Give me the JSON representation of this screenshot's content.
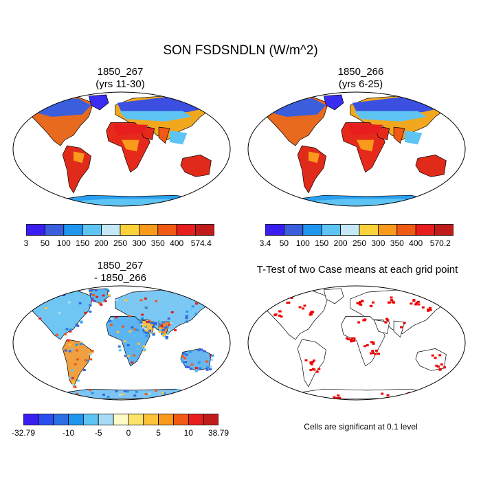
{
  "title": "SON FSDSNDLN (W/m^2)",
  "panels": [
    {
      "id": "p1",
      "line1": "1850_267",
      "line2": "(yrs 11-30)"
    },
    {
      "id": "p2",
      "line1": "1850_266",
      "line2": "(yrs 6-25)"
    },
    {
      "id": "p3",
      "line1": "1850_267",
      "line2": "- 1850_266"
    },
    {
      "id": "p4",
      "line1": "T-Test of two Case means at each grid point",
      "line2": ""
    }
  ],
  "colorbars": [
    {
      "id": "cb1",
      "labels": [
        "3",
        "50",
        "100",
        "150",
        "200",
        "250",
        "300",
        "350",
        "400",
        "574.4"
      ],
      "colors": [
        "#3a1ef0",
        "#3b5fdc",
        "#1e96f0",
        "#5ec4f4",
        "#c4e8f6",
        "#fcd23a",
        "#f99a1c",
        "#f05a14",
        "#e81e1e",
        "#c01c1c"
      ]
    },
    {
      "id": "cb2",
      "labels": [
        "3.4",
        "50",
        "100",
        "150",
        "200",
        "250",
        "300",
        "350",
        "400",
        "570.2"
      ],
      "colors": [
        "#3a1ef0",
        "#3b5fdc",
        "#1e96f0",
        "#5ec4f4",
        "#c4e8f6",
        "#fcd23a",
        "#f99a1c",
        "#f05a14",
        "#e81e1e",
        "#c01c1c"
      ]
    },
    {
      "id": "cb3",
      "labels": [
        "-32.79",
        "-10",
        "-5",
        "0",
        "5",
        "10",
        "38.79"
      ],
      "colors": [
        "#3a1ef0",
        "#2b4df0",
        "#2a6fe6",
        "#1e96f0",
        "#5ec4f4",
        "#a8dcf6",
        "#fffbc8",
        "#fce46a",
        "#fcc23a",
        "#f99a1c",
        "#f05a14",
        "#e81e1e",
        "#c01c1c"
      ]
    }
  ],
  "note": "Cells are significant at 0.1 level"
}
